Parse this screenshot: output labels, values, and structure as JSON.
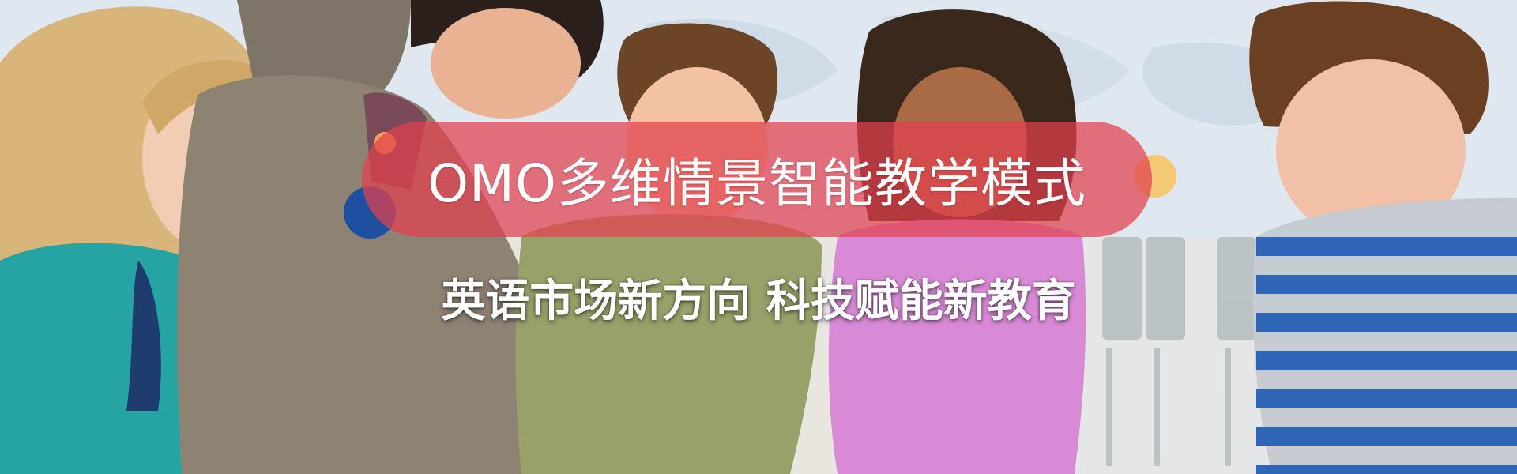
{
  "banner": {
    "headline": "OMO多维情景智能教学模式",
    "subline": "英语市场新方向  科技赋能新教育"
  },
  "colors": {
    "pill": "#e2404e",
    "accent_orange": "#f2a45a",
    "accent_blue": "#1f4fa0",
    "accent_yellow": "#f7c468"
  },
  "icons": [
    "decorative-dot-orange",
    "decorative-dot-blue",
    "decorative-dot-yellow"
  ]
}
